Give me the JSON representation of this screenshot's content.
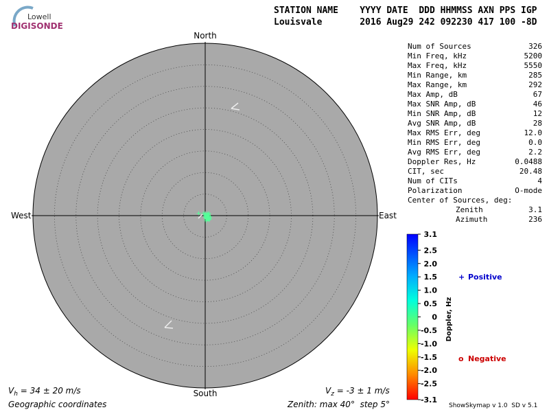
{
  "logo": {
    "line1": "Lowell",
    "line2": "DIGISONDE"
  },
  "header": {
    "labels": "STATION NAME    YYYY DATE  DDD HHMMSS AXN PPS IGP",
    "values": "Louisvale       2016 Aug29 242 092230 417 100 -8D"
  },
  "stats": [
    [
      "Num of Sources",
      "326"
    ],
    [
      "Min Freq, kHz",
      "5200"
    ],
    [
      "Max Freq, kHz",
      "5550"
    ],
    [
      "Min Range, km",
      "285"
    ],
    [
      "Max Range, km",
      "292"
    ],
    [
      "Max Amp, dB",
      "67"
    ],
    [
      "Max SNR Amp, dB",
      "46"
    ],
    [
      "Min SNR Amp, dB",
      "12"
    ],
    [
      "Avg SNR Amp, dB",
      "28"
    ],
    [
      "Max RMS Err, deg",
      "12.0"
    ],
    [
      "Min RMS Err, deg",
      "0.0"
    ],
    [
      "Avg RMS Err, deg",
      "2.2"
    ],
    [
      "Doppler Res, Hz",
      "0.0488"
    ],
    [
      "CIT, sec",
      "20.48"
    ],
    [
      "Num of CITs",
      "4"
    ],
    [
      "Polarization",
      "O-mode"
    ]
  ],
  "center": {
    "title": "Center of Sources, deg:",
    "rows": [
      [
        "Zenith",
        "3.1"
      ],
      [
        "Azimuth",
        "236"
      ]
    ]
  },
  "chart_data": {
    "type": "scatter",
    "directions": {
      "north": "North",
      "south": "South",
      "east": "East",
      "west": "West"
    },
    "rlim": [
      0,
      40
    ],
    "rings": [
      5,
      10,
      15,
      20,
      25,
      30,
      35,
      40
    ],
    "color": "#55ff99",
    "x": [
      -1.5,
      -0.32,
      0.03,
      0.45,
      0.86,
      0.76,
      0.38,
      -0.1,
      0.19,
      0.35,
      0.54,
      0.41,
      0.29,
      0.61,
      0.73,
      0.51,
      0.67,
      0.35,
      0.19,
      0.99,
      1.18,
      0.89,
      0.03,
      0.13,
      0.41,
      0.61,
      0.22,
      0.83,
      1.05,
      0.48,
      0.32,
      0.1,
      0.54,
      0.73,
      0.45,
      0.25,
      0.03,
      0.64,
      0.86,
      0.35
    ],
    "y": [
      0.54,
      0.57,
      0.45,
      0.45,
      0.54,
      0.29,
      0.35,
      0.13,
      0.03,
      -0.03,
      -0.13,
      -0.19,
      -0.25,
      -0.35,
      -0.45,
      -0.51,
      -0.61,
      -0.67,
      -0.83,
      -0.83,
      -0.29,
      -0.13,
      -0.38,
      -0.51,
      -0.41,
      0.06,
      -1.21,
      -1.02,
      -0.67,
      -0.25,
      -0.13,
      -0.13,
      -0.7,
      -0.19,
      0.13,
      -0.38,
      -0.13,
      -0.83,
      -0.51,
      -0.45
    ]
  },
  "colorbar": {
    "title": "Doppler, Hz",
    "clim": [
      -3.1,
      3.1
    ],
    "ticks": [
      3.1,
      2.5,
      {
        "value": 2,
        "label": "2.0"
      },
      1.5,
      {
        "value": 1,
        "label": "1.0"
      },
      0.5,
      0,
      -0.5,
      {
        "value": -1,
        "label": "-1.0"
      },
      -1.5,
      {
        "value": -2,
        "label": "-2.0"
      },
      -2.5,
      -3.1
    ],
    "positive": "Positive",
    "negative": "Negative"
  },
  "footer": {
    "vh": {
      "symbol": "V",
      "sub": "h",
      "text": " = 34 ± 20 m/s"
    },
    "vz": {
      "symbol": "V",
      "sub": "z",
      "text": " = -3 ± 1 m/s"
    },
    "coords": "Geographic coordinates",
    "zenith": "Zenith: max 40°  step 5°",
    "version": "ShowSkymap v 1.0  SD v 5.1"
  }
}
